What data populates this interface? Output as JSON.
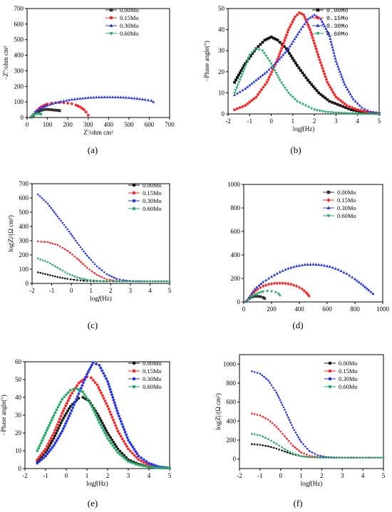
{
  "chart_data": [
    {
      "id": "a",
      "type": "scatter",
      "panel_label": "(a)",
      "xlabel": "Z'/ohm cm²",
      "ylabel": "−Z''/ohm cm²",
      "xlim": [
        0,
        700
      ],
      "ylim": [
        0,
        700
      ],
      "xticks": [
        0,
        100,
        200,
        300,
        400,
        500,
        600,
        700
      ],
      "yticks": [
        0,
        100,
        200,
        300,
        400,
        500,
        600,
        700
      ],
      "legend_position": "top-right",
      "series": [
        {
          "name": "0.00Mo",
          "color": "#333333",
          "marker": "square",
          "x": [
            20,
            30,
            40,
            50,
            60,
            70,
            80,
            90,
            100,
            110,
            120,
            130,
            140,
            150,
            155,
            160
          ],
          "y": [
            2,
            12,
            24,
            33,
            40,
            46,
            50,
            52,
            52,
            51,
            50,
            48,
            47,
            46,
            45,
            44
          ]
        },
        {
          "name": "0.15Mo",
          "color": "#ff2222",
          "marker": "circle",
          "x": [
            20,
            40,
            60,
            80,
            100,
            120,
            140,
            160,
            180,
            200,
            220,
            240,
            260,
            280,
            290,
            300
          ],
          "y": [
            2,
            35,
            60,
            76,
            86,
            92,
            95,
            96,
            95,
            92,
            88,
            80,
            68,
            50,
            35,
            15
          ]
        },
        {
          "name": "0.30Mo",
          "color": "#2233ee",
          "marker": "triangle-up",
          "x": [
            20,
            40,
            60,
            80,
            100,
            140,
            180,
            220,
            260,
            300,
            340,
            380,
            420,
            460,
            500,
            540,
            580,
            610,
            620
          ],
          "y": [
            2,
            35,
            55,
            68,
            78,
            94,
            106,
            116,
            122,
            127,
            130,
            131,
            131,
            130,
            127,
            122,
            115,
            108,
            100
          ]
        },
        {
          "name": "0.60Mo",
          "color": "#22aa66",
          "marker": "triangle-down",
          "x": [
            20,
            25,
            30,
            35,
            40,
            45,
            50,
            55,
            60,
            65,
            70
          ],
          "y": [
            2,
            10,
            16,
            20,
            23,
            25,
            25,
            25,
            24,
            23,
            20
          ]
        }
      ]
    },
    {
      "id": "b",
      "type": "scatter",
      "panel_label": "(b)",
      "xlabel": "log",
      "xlabel_mid": "f",
      "xlabel_unit": "(Hz)",
      "ylabel": "−Phase angle(°)",
      "xlim": [
        -2,
        5
      ],
      "ylim": [
        0,
        50
      ],
      "xticks": [
        -2,
        -1,
        0,
        1,
        2,
        3,
        4,
        5
      ],
      "yticks": [
        0,
        10,
        20,
        30,
        40,
        50
      ],
      "legend_position": "top-right",
      "series": [
        {
          "name": "0.00Mo",
          "color": "#111111",
          "marker": "square",
          "x": [
            -1.7,
            -1.2,
            -0.7,
            -0.3,
            0,
            0.3,
            0.7,
            1.2,
            1.7,
            2.2,
            2.7,
            3.2,
            3.7,
            4.2,
            4.7,
            5
          ],
          "y": [
            15,
            24,
            31,
            35,
            36.5,
            35,
            31,
            23,
            16,
            10,
            6,
            4,
            2,
            1,
            0.5,
            0.2
          ]
        },
        {
          "name": "0.15Mo",
          "color": "#ff2222",
          "marker": "circle",
          "x": [
            -1.7,
            -1.2,
            -0.7,
            -0.2,
            0.3,
            0.8,
            1.1,
            1.3,
            1.5,
            1.8,
            2.2,
            2.6,
            3,
            3.5,
            4,
            4.5,
            5
          ],
          "y": [
            2,
            4,
            8,
            15,
            26,
            40,
            46,
            48,
            47,
            40,
            27,
            15,
            8,
            4,
            2,
            0.8,
            0.3
          ]
        },
        {
          "name": "0.30Mo",
          "color": "#2233ee",
          "marker": "triangle-up",
          "x": [
            -1.7,
            -1.2,
            -0.7,
            -0.2,
            0.3,
            0.8,
            1.3,
            1.7,
            2,
            2.3,
            2.7,
            3,
            3.4,
            3.8,
            4.2,
            4.6,
            5
          ],
          "y": [
            9,
            12,
            16,
            20,
            25,
            31,
            39,
            45,
            47,
            45,
            37,
            25,
            14,
            7,
            3,
            1,
            0.5
          ]
        },
        {
          "name": "0.60Mo",
          "color": "#22aa66",
          "marker": "triangle-down",
          "x": [
            -1.7,
            -1.3,
            -1,
            -0.7,
            -0.4,
            0,
            0.4,
            0.8,
            1.2,
            1.6,
            2,
            2.5,
            3,
            3.5,
            4,
            5
          ],
          "y": [
            10,
            20,
            28,
            31,
            30,
            24,
            16,
            10,
            6,
            4,
            2,
            1,
            0.5,
            0.3,
            0.1,
            0
          ]
        }
      ]
    },
    {
      "id": "c",
      "type": "line",
      "panel_label": "(c)",
      "xlabel": "log",
      "xlabel_mid": "f",
      "xlabel_unit": "(Hz)",
      "ylabel": "log|Z|/(Ω cm²)",
      "xlim": [
        -2,
        5
      ],
      "ylim": [
        0,
        700
      ],
      "xticks": [
        -2,
        -1,
        0,
        1,
        2,
        3,
        4,
        5
      ],
      "yticks": [
        0,
        100,
        200,
        300,
        400,
        500,
        600,
        700
      ],
      "legend_position": "top-right",
      "series": [
        {
          "name": "0.00Mo",
          "color": "#111111",
          "marker": "circle",
          "x": [
            -1.7,
            -1.2,
            -0.7,
            -0.2,
            0.3,
            0.8,
            1.3,
            1.8,
            2.3,
            3,
            4,
            5
          ],
          "y": [
            78,
            62,
            45,
            32,
            23,
            18,
            16,
            15,
            15,
            15,
            15,
            15
          ]
        },
        {
          "name": "0.15Mo",
          "color": "#ff2222",
          "marker": "circle",
          "x": [
            -1.7,
            -1.2,
            -0.7,
            -0.2,
            0.3,
            0.8,
            1.3,
            1.8,
            2.3,
            3,
            4,
            5
          ],
          "y": [
            295,
            290,
            270,
            230,
            175,
            110,
            60,
            28,
            18,
            15,
            15,
            15
          ]
        },
        {
          "name": "0.30Mo",
          "color": "#2233ee",
          "marker": "circle",
          "x": [
            -1.7,
            -1.2,
            -0.7,
            -0.2,
            0.3,
            0.8,
            1.3,
            1.8,
            2.3,
            2.8,
            3.3,
            4,
            5
          ],
          "y": [
            625,
            560,
            470,
            380,
            285,
            195,
            120,
            65,
            32,
            20,
            16,
            15,
            15
          ]
        },
        {
          "name": "0.60Mo",
          "color": "#22aa66",
          "marker": "circle",
          "x": [
            -1.7,
            -1.2,
            -0.7,
            -0.2,
            0.3,
            0.8,
            1.3,
            1.8,
            2.3,
            3,
            4,
            5
          ],
          "y": [
            175,
            150,
            110,
            70,
            42,
            26,
            19,
            16,
            15,
            15,
            15,
            15
          ]
        }
      ]
    },
    {
      "id": "d",
      "type": "scatter",
      "panel_label": "(d)",
      "xlabel": "",
      "ylabel": "",
      "xlim": [
        0,
        1000
      ],
      "ylim": [
        0,
        1000
      ],
      "xticks": [
        0,
        200,
        400,
        600,
        800,
        1000
      ],
      "yticks": [
        0,
        200,
        400,
        600,
        800,
        1000
      ],
      "legend_position": "top-right",
      "series": [
        {
          "name": "0.00Mo",
          "color": "#333333",
          "marker": "square",
          "x": [
            20,
            40,
            60,
            80,
            100,
            120,
            140,
            150
          ],
          "y": [
            5,
            30,
            42,
            48,
            48,
            45,
            38,
            30
          ]
        },
        {
          "name": "0.15Mo",
          "color": "#ff2222",
          "marker": "diamond",
          "x": [
            20,
            60,
            100,
            140,
            180,
            220,
            260,
            300,
            340,
            380,
            420,
            450,
            470
          ],
          "y": [
            5,
            70,
            110,
            135,
            150,
            158,
            160,
            158,
            150,
            135,
            110,
            80,
            50
          ]
        },
        {
          "name": "0.30Mo",
          "color": "#2233ee",
          "marker": "triangle-up",
          "x": [
            20,
            80,
            140,
            200,
            260,
            320,
            380,
            440,
            500,
            560,
            620,
            680,
            740,
            800,
            860,
            900,
            930
          ],
          "y": [
            5,
            110,
            170,
            215,
            255,
            285,
            305,
            318,
            320,
            315,
            300,
            275,
            240,
            195,
            140,
            100,
            70
          ]
        },
        {
          "name": "0.60Mo",
          "color": "#22aa66",
          "marker": "triangle-down",
          "x": [
            20,
            50,
            80,
            110,
            140,
            170,
            200,
            230,
            250,
            260
          ],
          "y": [
            5,
            40,
            62,
            78,
            88,
            92,
            90,
            82,
            70,
            55
          ]
        }
      ]
    },
    {
      "id": "e",
      "type": "scatter",
      "panel_label": "(e)",
      "xlabel": "log",
      "xlabel_mid": "f",
      "xlabel_unit": "(Hz)",
      "ylabel": "−Phase angle(°)",
      "xlim": [
        -2,
        5
      ],
      "ylim": [
        0,
        60
      ],
      "xticks": [
        -2,
        -1,
        0,
        1,
        2,
        3,
        4,
        5
      ],
      "yticks": [
        0,
        10,
        20,
        30,
        40,
        50,
        60
      ],
      "legend_position": "top-right",
      "series": [
        {
          "name": "0.00Mo",
          "color": "#111111",
          "marker": "circle",
          "x": [
            -1.4,
            -1,
            -0.6,
            -0.2,
            0.2,
            0.6,
            0.8,
            1.1,
            1.5,
            2,
            2.5,
            3,
            3.5,
            4,
            4.5,
            5
          ],
          "y": [
            4,
            9,
            17,
            27,
            35,
            39.5,
            40,
            38,
            31,
            20,
            11,
            5,
            2.5,
            1,
            0.4,
            0.2
          ]
        },
        {
          "name": "0.15Mo",
          "color": "#ff2222",
          "marker": "circle",
          "x": [
            -1.4,
            -1,
            -0.6,
            -0.2,
            0.2,
            0.6,
            1,
            1.2,
            1.5,
            2,
            2.5,
            3,
            3.5,
            4,
            4.5,
            5
          ],
          "y": [
            5,
            11,
            20,
            31,
            41,
            48,
            51.5,
            51,
            47,
            35,
            21,
            11,
            5,
            2,
            0.8,
            0.3
          ]
        },
        {
          "name": "0.30Mo",
          "color": "#2233ee",
          "marker": "circle",
          "x": [
            -1.4,
            -1,
            -0.6,
            -0.2,
            0.2,
            0.6,
            1,
            1.3,
            1.6,
            2,
            2.5,
            3,
            3.5,
            4,
            4.5,
            5
          ],
          "y": [
            3,
            7,
            13,
            21,
            31,
            42,
            53,
            59.5,
            58,
            49,
            31,
            16,
            7,
            3,
            1,
            0.4
          ]
        },
        {
          "name": "0.60Mo",
          "color": "#22aa66",
          "marker": "circle",
          "x": [
            -1.4,
            -1,
            -0.6,
            -0.2,
            0.2,
            0.5,
            0.8,
            1.2,
            1.6,
            2,
            2.5,
            3,
            3.5,
            4,
            4.5,
            5
          ],
          "y": [
            10,
            20,
            30,
            39,
            44,
            45,
            43,
            36,
            26,
            17,
            9,
            4,
            2,
            1,
            0.4,
            0.2
          ]
        }
      ]
    },
    {
      "id": "f",
      "type": "line",
      "panel_label": "(f)",
      "xlabel": "log",
      "xlabel_mid": "f",
      "xlabel_unit": "(Hz)",
      "ylabel": "log|Z|/(Ω cm²)",
      "xlim": [
        -2,
        5
      ],
      "ylim": [
        -100,
        1100
      ],
      "xticks": [
        -2,
        -1,
        0,
        1,
        2,
        3,
        4,
        5
      ],
      "yticks": [
        0,
        200,
        400,
        600,
        800,
        1000
      ],
      "legend_position": "top-right",
      "series": [
        {
          "name": "0.00Mo",
          "color": "#111111",
          "marker": "circle",
          "x": [
            -1.4,
            -1,
            -0.6,
            -0.2,
            0.2,
            0.6,
            1,
            1.4,
            1.8,
            2.2,
            3,
            4,
            5
          ],
          "y": [
            158,
            150,
            135,
            110,
            80,
            50,
            30,
            20,
            16,
            15,
            15,
            15,
            15
          ]
        },
        {
          "name": "0.15Mo",
          "color": "#ff2222",
          "marker": "circle",
          "x": [
            -1.4,
            -1,
            -0.6,
            -0.2,
            0.2,
            0.6,
            1,
            1.4,
            1.8,
            2.2,
            3,
            4,
            5
          ],
          "y": [
            480,
            460,
            415,
            340,
            240,
            140,
            70,
            35,
            20,
            16,
            15,
            15,
            15
          ]
        },
        {
          "name": "0.30Mo",
          "color": "#2233ee",
          "marker": "circle",
          "x": [
            -1.4,
            -1,
            -0.6,
            -0.2,
            0.2,
            0.6,
            1,
            1.4,
            1.8,
            2.2,
            3,
            4,
            5
          ],
          "y": [
            925,
            900,
            830,
            700,
            520,
            330,
            180,
            85,
            40,
            22,
            16,
            15,
            15
          ]
        },
        {
          "name": "0.60Mo",
          "color": "#22aa66",
          "marker": "circle",
          "x": [
            -1.4,
            -1,
            -0.6,
            -0.2,
            0.2,
            0.6,
            1,
            1.4,
            1.8,
            2.2,
            3,
            4,
            5
          ],
          "y": [
            265,
            250,
            210,
            160,
            105,
            60,
            32,
            20,
            16,
            15,
            15,
            15,
            15
          ]
        }
      ]
    }
  ]
}
